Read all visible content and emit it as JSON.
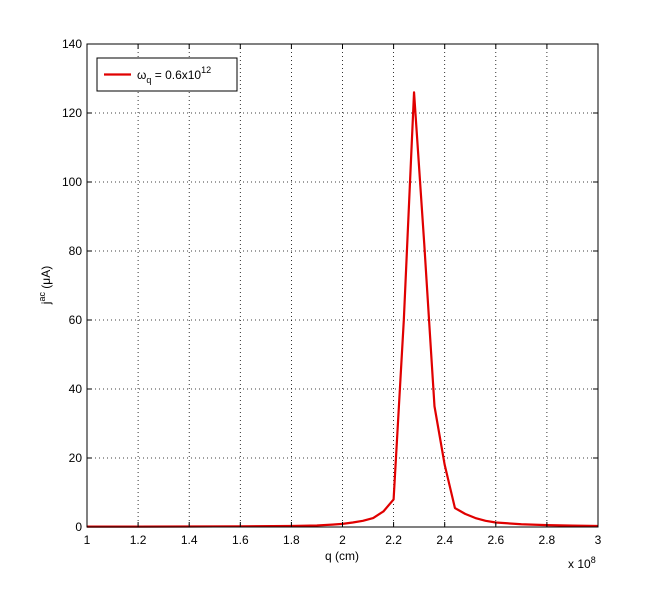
{
  "chart_data": {
    "type": "line",
    "title": "",
    "xlabel": "q (cm)",
    "ylabel": {
      "base": "j",
      "sup": "ac",
      "rest": " (μA)"
    },
    "x_multiplier": {
      "prefix": "x 10",
      "exp": "8"
    },
    "xlim": [
      1,
      3
    ],
    "ylim": [
      0,
      140
    ],
    "xticks": [
      1,
      1.2,
      1.4,
      1.6,
      1.8,
      2,
      2.2,
      2.4,
      2.6,
      2.8,
      3
    ],
    "xtick_labels": [
      "1",
      "1.2",
      "1.4",
      "1.6",
      "1.8",
      "2",
      "2.2",
      "2.4",
      "2.6",
      "2.8",
      "3"
    ],
    "yticks": [
      0,
      20,
      40,
      60,
      80,
      100,
      120,
      140
    ],
    "ytick_labels": [
      "0",
      "20",
      "40",
      "60",
      "80",
      "100",
      "120",
      "140"
    ],
    "grid": true,
    "legend_position": "top-left",
    "series": [
      {
        "legend": {
          "omega": "ω",
          "sub": "q",
          "mid": " = 0.6x10",
          "sup": "12"
        },
        "color": "#e00000",
        "x": [
          1.0,
          1.2,
          1.4,
          1.6,
          1.8,
          1.9,
          1.96,
          2.0,
          2.04,
          2.08,
          2.12,
          2.16,
          2.2,
          2.24,
          2.28,
          2.32,
          2.36,
          2.4,
          2.44,
          2.48,
          2.52,
          2.56,
          2.6,
          2.7,
          2.8,
          2.9,
          3.0
        ],
        "y": [
          0.1,
          0.1,
          0.15,
          0.2,
          0.3,
          0.45,
          0.7,
          0.9,
          1.3,
          1.8,
          2.6,
          4.5,
          8.0,
          60.0,
          126.0,
          82.0,
          35.0,
          18.0,
          5.5,
          3.8,
          2.6,
          1.8,
          1.3,
          0.8,
          0.55,
          0.4,
          0.3
        ]
      }
    ]
  }
}
